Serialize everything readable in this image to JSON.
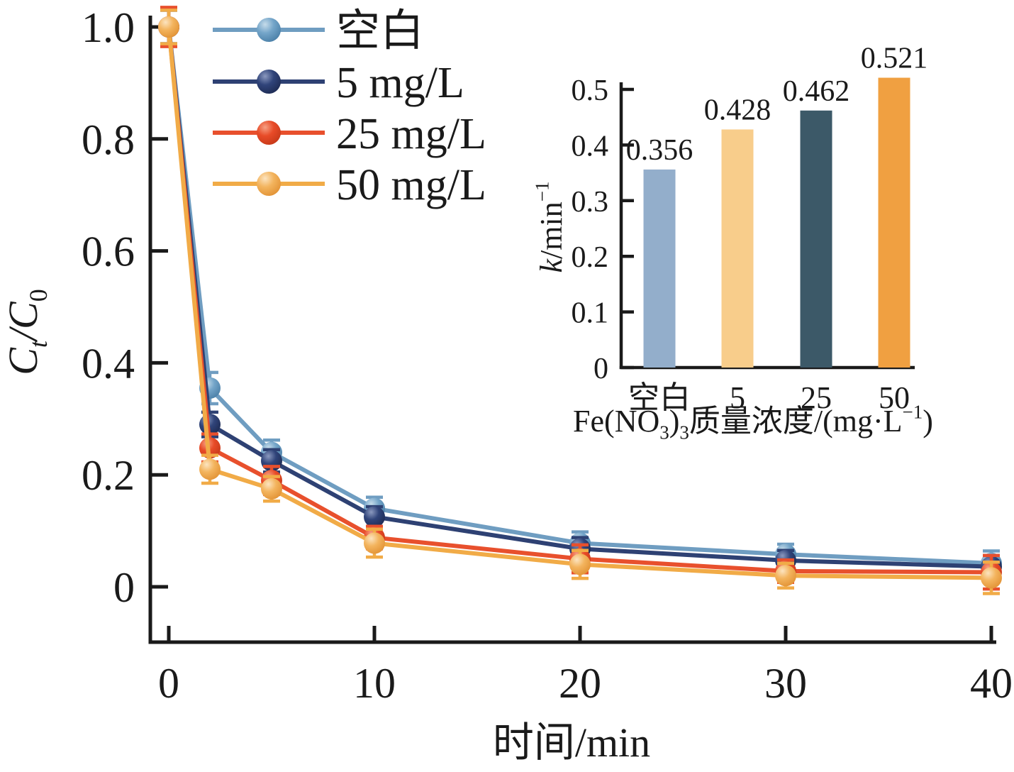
{
  "figure": {
    "background": "#ffffff",
    "axis_color": "#1a1a1a"
  },
  "chart_data": [
    {
      "id": "main",
      "type": "line",
      "xlabel": "时间/min",
      "ylabel": "Ct/C0",
      "ylabel_rich": [
        {
          "t": "C",
          "i": 1
        },
        {
          "t": "t",
          "i": 1,
          "v": "sub"
        },
        {
          "t": "/",
          "i": 1
        },
        {
          "t": "C",
          "i": 1
        },
        {
          "t": "0",
          "v": "sub"
        }
      ],
      "x": [
        0,
        2,
        5,
        10,
        20,
        30,
        40
      ],
      "xticks": {
        "values": [
          0,
          10,
          20,
          30,
          40
        ],
        "labels": [
          "0",
          "10",
          "20",
          "30",
          "40"
        ]
      },
      "yticks": {
        "values": [
          1.0,
          0.8,
          0.6,
          0.4,
          0.2,
          0
        ],
        "labels": [
          "1.0",
          "0.8",
          "0.6",
          "0.4",
          "0.2",
          "0"
        ]
      },
      "xlim": [
        -0.9,
        41
      ],
      "ylim": [
        -0.1,
        1.02
      ],
      "grid": false,
      "legend_position": "upper-left-inside",
      "series": [
        {
          "name": "空白",
          "line_color": "#6f9dc1",
          "sphere": [
            "#c6dcea",
            "#74a5c9",
            "#497ea6"
          ],
          "values": [
            1.0,
            0.355,
            0.24,
            0.14,
            0.078,
            0.058,
            0.042
          ],
          "errors": [
            0.03,
            0.028,
            0.022,
            0.02,
            0.02,
            0.018,
            0.022
          ]
        },
        {
          "name": "5 mg/L",
          "line_color": "#2e4173",
          "sphere": [
            "#8b99bf",
            "#30447a",
            "#1d2a52"
          ],
          "values": [
            1.0,
            0.29,
            0.225,
            0.125,
            0.068,
            0.047,
            0.036
          ],
          "errors": [
            0.03,
            0.022,
            0.02,
            0.018,
            0.02,
            0.018,
            0.02
          ]
        },
        {
          "name": "25 mg/L",
          "line_color": "#e8502d",
          "sphere": [
            "#f6a083",
            "#e84b28",
            "#c53818"
          ],
          "values": [
            1.0,
            0.248,
            0.19,
            0.088,
            0.05,
            0.028,
            0.026
          ],
          "errors": [
            0.035,
            0.025,
            0.025,
            0.02,
            0.025,
            0.02,
            0.03
          ]
        },
        {
          "name": "50 mg/L",
          "line_color": "#f1ab47",
          "sphere": [
            "#fce4c0",
            "#f3b45e",
            "#e19133"
          ],
          "values": [
            1.0,
            0.21,
            0.175,
            0.078,
            0.04,
            0.02,
            0.016
          ],
          "errors": [
            0.03,
            0.025,
            0.022,
            0.025,
            0.025,
            0.022,
            0.028
          ]
        }
      ]
    },
    {
      "id": "inset",
      "type": "bar",
      "categories": [
        "空白",
        "5",
        "25",
        "50"
      ],
      "values": [
        0.356,
        0.428,
        0.462,
        0.521
      ],
      "value_labels": [
        "0.356",
        "0.428",
        "0.462",
        "0.521"
      ],
      "bar_colors": [
        "#93aecb",
        "#f8cd8b",
        "#3c5968",
        "#f0a041"
      ],
      "xlabel": "Fe(NO₃)₃质量浓度/(mg·L⁻¹)",
      "xlabel_rich": [
        {
          "t": "Fe(NO"
        },
        {
          "t": "3",
          "v": "sub"
        },
        {
          "t": ")"
        },
        {
          "t": "3",
          "v": "sub"
        },
        {
          "t": "质量浓度/(mg·L"
        },
        {
          "t": "−1",
          "v": "sup"
        },
        {
          "t": ")"
        }
      ],
      "ylabel": "k/min⁻¹",
      "ylabel_rich": [
        {
          "t": "k",
          "i": 1
        },
        {
          "t": "/min"
        },
        {
          "t": "−1",
          "v": "sup"
        }
      ],
      "yticks": {
        "values": [
          0,
          0.1,
          0.2,
          0.3,
          0.4,
          0.5
        ],
        "labels": [
          "0",
          "0.1",
          "0.2",
          "0.3",
          "0.4",
          "0.5"
        ]
      },
      "ylim": [
        0,
        0.53
      ],
      "grid": false
    }
  ]
}
